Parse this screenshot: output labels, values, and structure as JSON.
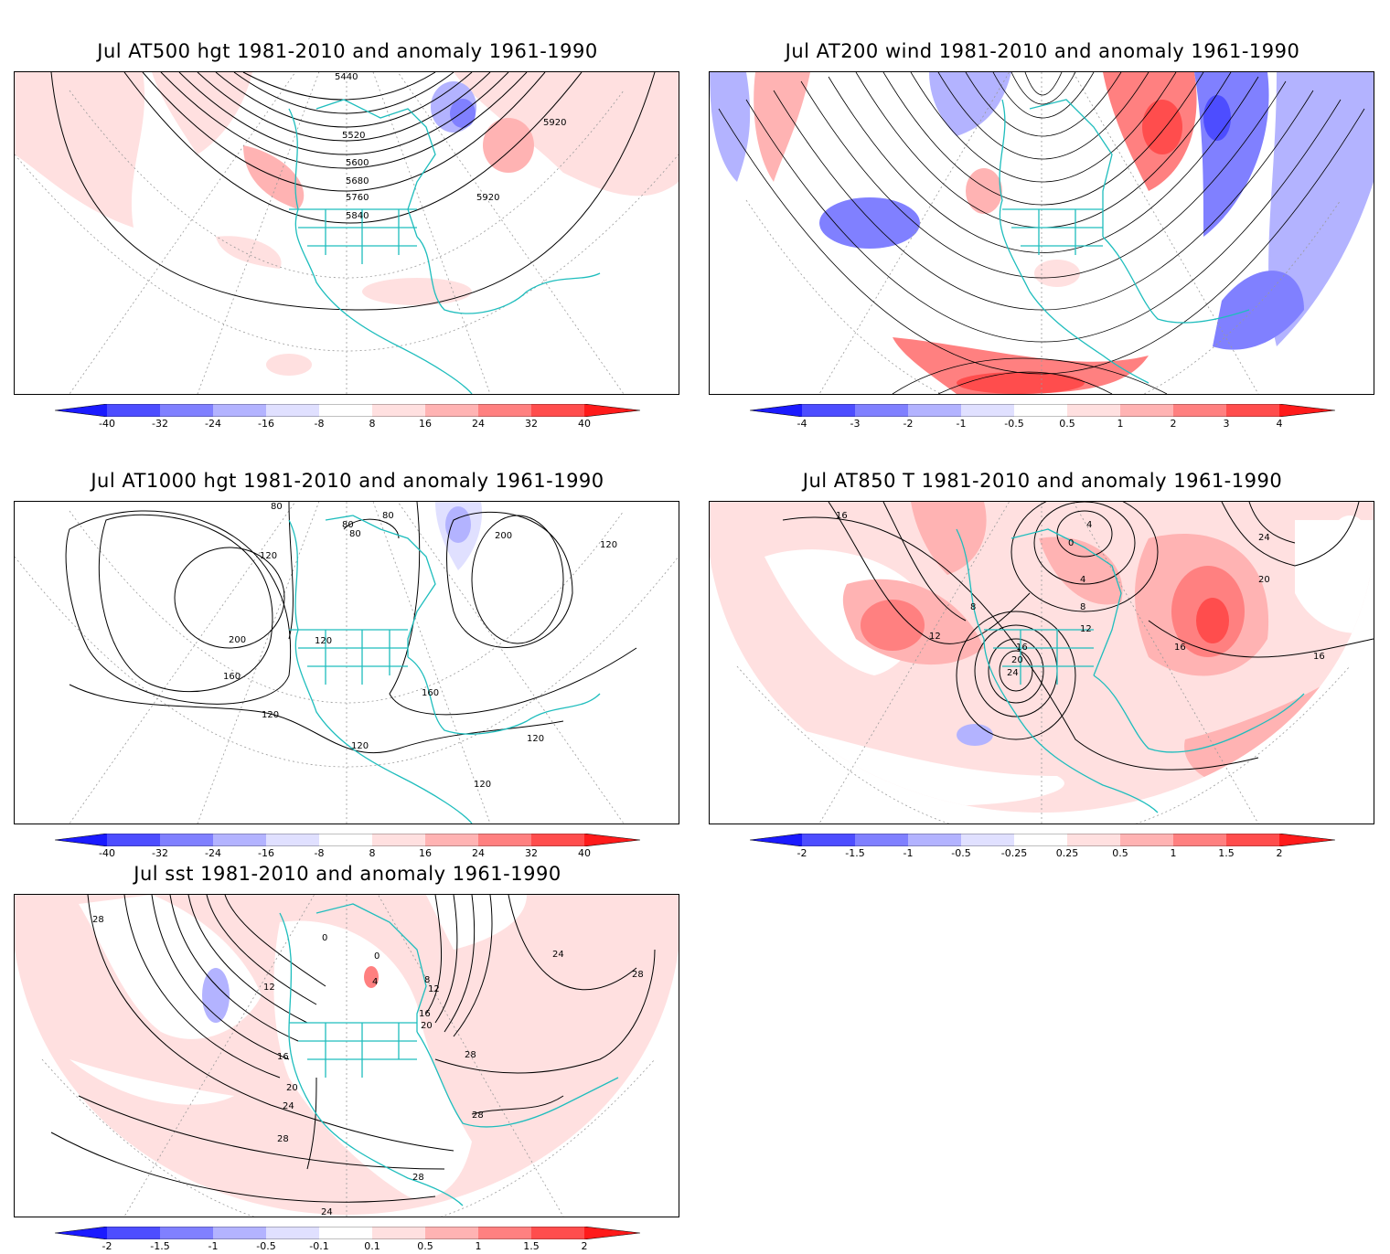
{
  "colors": {
    "coast": "#1ebdbd",
    "neg": [
      "#1a1aff",
      "#4d4dff",
      "#8080ff",
      "#b3b3ff",
      "#e0e0ff"
    ],
    "pos": [
      "#ffe0e0",
      "#ffb3b3",
      "#ff8080",
      "#ff4d4d",
      "#ff1a1a"
    ],
    "contour": "#000000"
  },
  "panels": [
    {
      "id": "at500",
      "title": "Jul AT500 hgt 1981-2010 and anomaly 1961-1990",
      "contour_labels": [
        "5440",
        "5520",
        "5600",
        "5680",
        "5760",
        "5840",
        "5920",
        "5920"
      ],
      "colorbar": [
        "-40",
        "-32",
        "-24",
        "-16",
        "-8",
        "8",
        "16",
        "24",
        "32",
        "40"
      ]
    },
    {
      "id": "at200",
      "title": "Jul AT200 wind 1981-2010 and anomaly 1961-1990",
      "contour_labels": [],
      "colorbar": [
        "-4",
        "-3",
        "-2",
        "-1",
        "-0.5",
        "0.5",
        "1",
        "2",
        "3",
        "4"
      ]
    },
    {
      "id": "at1000",
      "title": "Jul AT1000 hgt 1981-2010 and anomaly 1961-1990",
      "contour_labels": [
        "80",
        "80",
        "80",
        "80",
        "120",
        "120",
        "120",
        "120",
        "200",
        "200",
        "160",
        "160",
        "120",
        "120",
        "120"
      ],
      "colorbar": [
        "-40",
        "-32",
        "-24",
        "-16",
        "-8",
        "8",
        "16",
        "24",
        "32",
        "40"
      ]
    },
    {
      "id": "at850",
      "title": "Jul AT850 T 1981-2010 and anomaly 1961-1990",
      "contour_labels": [
        "16",
        "4",
        "0",
        "4",
        "8",
        "8",
        "12",
        "12",
        "16",
        "20",
        "24",
        "24",
        "20",
        "16",
        "16"
      ],
      "colorbar": [
        "-2",
        "-1.5",
        "-1",
        "-0.5",
        "-0.25",
        "0.25",
        "0.5",
        "1",
        "1.5",
        "2"
      ]
    },
    {
      "id": "sst",
      "title": "Jul sst 1981-2010 and anomaly 1961-1990",
      "contour_labels": [
        "28",
        "12",
        "16",
        "20",
        "24",
        "28",
        "28",
        "0",
        "0",
        "4",
        "8",
        "12",
        "16",
        "20",
        "24",
        "28",
        "28",
        "28",
        "24"
      ],
      "colorbar": [
        "-2",
        "-1.5",
        "-1",
        "-0.5",
        "-0.1",
        "0.1",
        "0.5",
        "1",
        "1.5",
        "2"
      ]
    }
  ]
}
